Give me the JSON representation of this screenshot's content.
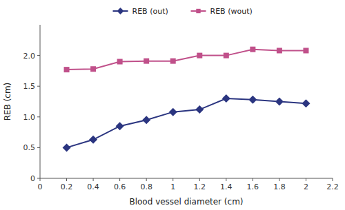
{
  "chart_data": {
    "type": "line",
    "xlabel": "Blood vessel diameter (cm)",
    "ylabel": "REB (cm)",
    "x": [
      0.2,
      0.4,
      0.6,
      0.8,
      1.0,
      1.2,
      1.4,
      1.6,
      1.8,
      2.0
    ],
    "series": [
      {
        "name": "REB (out)",
        "color": "#2B3580",
        "marker": "diamond",
        "line_style": "solid",
        "values": [
          0.5,
          0.63,
          0.85,
          0.95,
          1.08,
          1.12,
          1.3,
          1.28,
          1.25,
          1.22
        ]
      },
      {
        "name": "REB (wout)",
        "color": "#C0508A",
        "marker": "square",
        "line_style": "solid",
        "values": [
          1.77,
          1.78,
          1.9,
          1.91,
          1.91,
          2.0,
          2.0,
          2.1,
          2.08,
          2.08
        ]
      }
    ],
    "xlim": [
      0,
      2.2
    ],
    "ylim": [
      0,
      2.5
    ],
    "xticks": [
      0,
      0.2,
      0.4,
      0.6,
      0.8,
      1,
      1.2,
      1.4,
      1.6,
      1.8,
      2,
      2.2
    ],
    "yticks": [
      0,
      0.5,
      {
        "value": 1,
        "label": "1.0"
      },
      1.5,
      {
        "value": 2,
        "label": "2.0"
      }
    ],
    "legend": "top",
    "grid": false
  }
}
